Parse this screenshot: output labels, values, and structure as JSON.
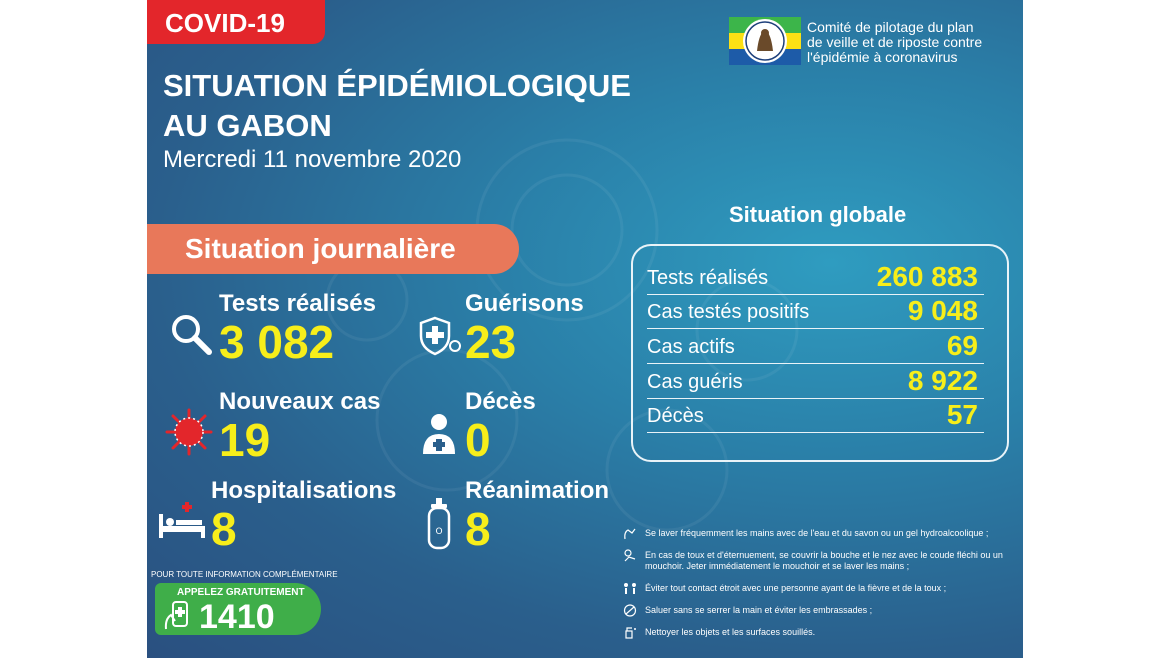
{
  "badge": "COVID-19",
  "title_line1": "SITUATION ÉPIDÉMIOLOGIQUE",
  "title_line2": "AU GABON",
  "date": "Mercredi 11 novembre 2020",
  "committee": {
    "line1": "Comité de pilotage du plan",
    "line2": "de veille et de riposte contre",
    "line3": "l'épidémie à coronavirus"
  },
  "daily": {
    "heading": "Situation journalière",
    "items": [
      {
        "label": "Tests réalisés",
        "value": "3 082",
        "icon": "magnifier-icon"
      },
      {
        "label": "Guérisons",
        "value": "23",
        "icon": "shield-cross-icon"
      },
      {
        "label": "Nouveaux cas",
        "value": "19",
        "icon": "virus-icon"
      },
      {
        "label": "Décès",
        "value": "0",
        "icon": "person-cross-icon"
      },
      {
        "label": "Hospitalisations",
        "value": "8",
        "icon": "hospital-bed-icon"
      },
      {
        "label": "Réanimation",
        "value": "8",
        "icon": "oxygen-tank-icon"
      }
    ]
  },
  "contact": {
    "info": "POUR TOUTE INFORMATION COMPLÉMENTAIRE",
    "call": "APPELEZ GRATUITEMENT",
    "number": "1410"
  },
  "global": {
    "heading": "Situation globale",
    "rows": [
      {
        "label": "Tests réalisés",
        "value": "260 883"
      },
      {
        "label": "Cas testés positifs",
        "value": "9 048"
      },
      {
        "label": "Cas actifs",
        "value": "69"
      },
      {
        "label": "Cas guéris",
        "value": "8 922"
      },
      {
        "label": "Décès",
        "value": "57"
      }
    ]
  },
  "tips": [
    "Se laver fréquemment les mains avec de l'eau et du savon ou un gel hydroalcoolique ;",
    "En cas de toux et d'éternuement, se couvrir la bouche et le nez avec le coude fléchi ou un mouchoir. Jeter immédiatement le mouchoir et se laver les mains ;",
    "Éviter tout contact étroit avec une personne ayant de la fièvre et de la toux ;",
    "Saluer sans se serrer la main et éviter les embrassades ;",
    "Nettoyer les objets et les surfaces souillés."
  ],
  "colors": {
    "accent_red": "#e3262b",
    "accent_orange": "#e8785a",
    "value_yellow": "#f7ee1a",
    "call_green": "#3fae49"
  }
}
